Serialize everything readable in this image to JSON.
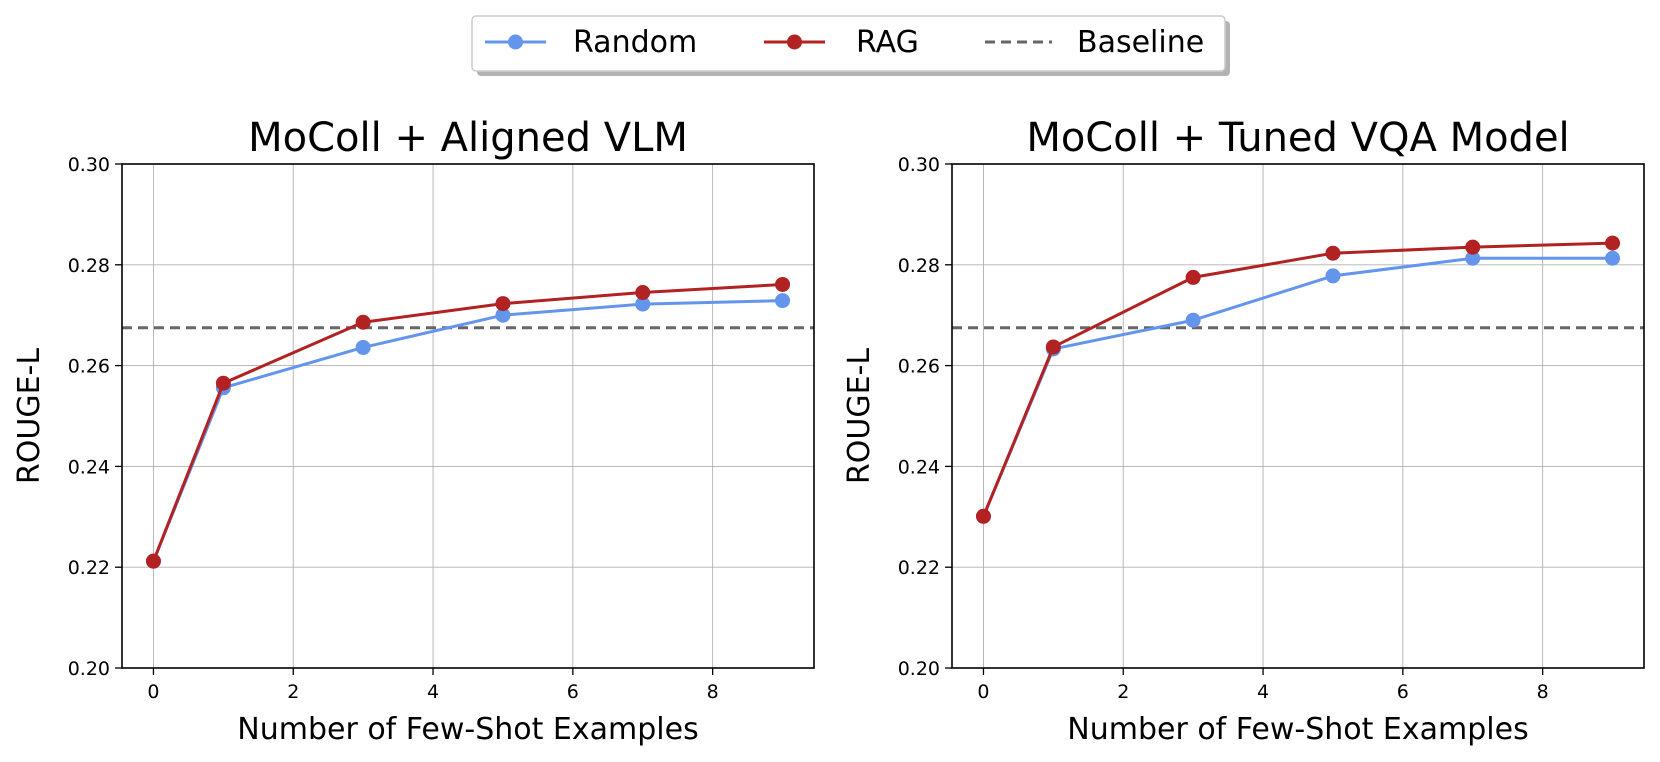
{
  "legend": {
    "entries": [
      {
        "label": "Random",
        "color": "#6495ED",
        "style": "line-marker"
      },
      {
        "label": "RAG",
        "color": "#B22222",
        "style": "line-marker"
      },
      {
        "label": "Baseline",
        "color": "#666666",
        "style": "dashed"
      }
    ]
  },
  "chart_data": [
    {
      "type": "line",
      "title": "MoColl + Aligned VLM",
      "xlabel": "Number of Few-Shot Examples",
      "ylabel": "ROUGE-L",
      "xlim": [
        -0.45,
        9.45
      ],
      "ylim": [
        0.2,
        0.3
      ],
      "xticks": [
        0,
        2,
        4,
        6,
        8
      ],
      "yticks": [
        0.2,
        0.22,
        0.24,
        0.26,
        0.28,
        0.3
      ],
      "ytick_labels": [
        "0.20",
        "0.22",
        "0.24",
        "0.26",
        "0.28",
        "0.30"
      ],
      "grid": true,
      "baseline": 0.2675,
      "series": [
        {
          "name": "Random",
          "color": "#6495ED",
          "x": [
            0,
            1,
            3,
            5,
            7,
            9
          ],
          "values": [
            0.2212,
            0.2556,
            0.2636,
            0.27,
            0.2722,
            0.2729
          ]
        },
        {
          "name": "RAG",
          "color": "#B22222",
          "x": [
            0,
            1,
            3,
            5,
            7,
            9
          ],
          "values": [
            0.2212,
            0.2565,
            0.2686,
            0.2723,
            0.2745,
            0.2761
          ]
        }
      ]
    },
    {
      "type": "line",
      "title": "MoColl + Tuned VQA Model",
      "xlabel": "Number of Few-Shot Examples",
      "ylabel": "ROUGE-L",
      "xlim": [
        -0.45,
        9.45
      ],
      "ylim": [
        0.2,
        0.3
      ],
      "xticks": [
        0,
        2,
        4,
        6,
        8
      ],
      "yticks": [
        0.2,
        0.22,
        0.24,
        0.26,
        0.28,
        0.3
      ],
      "ytick_labels": [
        "0.20",
        "0.22",
        "0.24",
        "0.26",
        "0.28",
        "0.30"
      ],
      "grid": true,
      "baseline": 0.2675,
      "series": [
        {
          "name": "Random",
          "color": "#6495ED",
          "x": [
            0,
            1,
            3,
            5,
            7,
            9
          ],
          "values": [
            0.2301,
            0.2633,
            0.269,
            0.2778,
            0.2813,
            0.2813
          ]
        },
        {
          "name": "RAG",
          "color": "#B22222",
          "x": [
            0,
            1,
            3,
            5,
            7,
            9
          ],
          "values": [
            0.2301,
            0.2637,
            0.2775,
            0.2823,
            0.2835,
            0.2843
          ]
        }
      ]
    }
  ]
}
